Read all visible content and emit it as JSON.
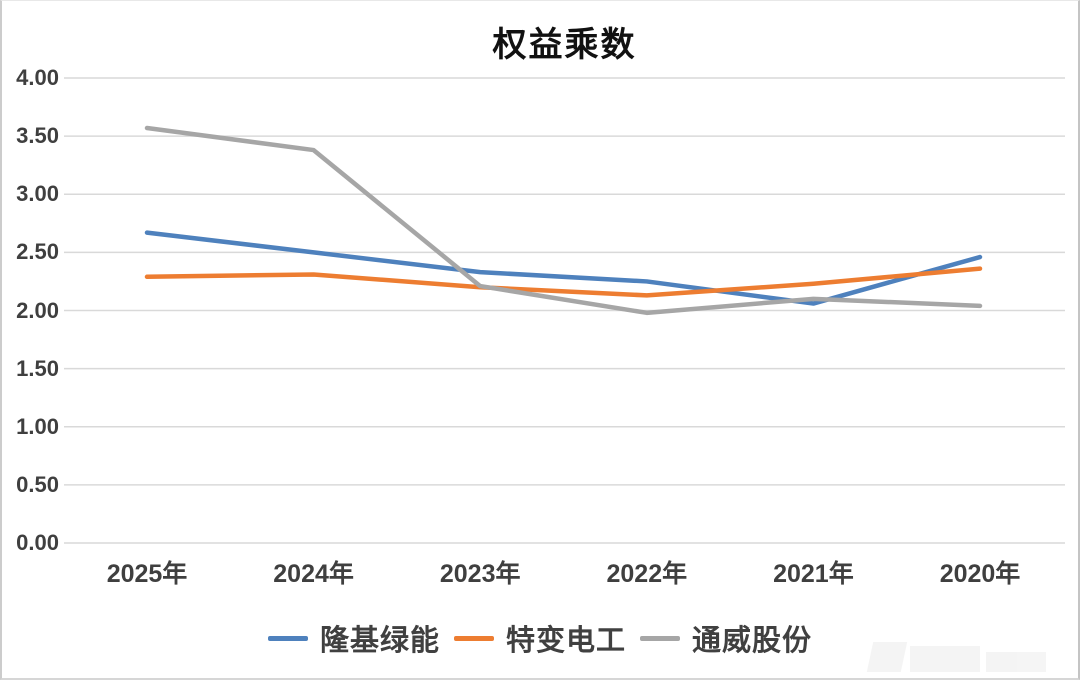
{
  "chart_data": {
    "type": "line",
    "title": "权益乘数",
    "categories": [
      "2025年",
      "2024年",
      "2023年",
      "2022年",
      "2021年",
      "2020年"
    ],
    "series": [
      {
        "name": "隆基绿能",
        "color": "#4E81BD",
        "values": [
          2.67,
          2.5,
          2.33,
          2.25,
          2.06,
          2.46
        ]
      },
      {
        "name": "特变电工",
        "color": "#ED7D31",
        "values": [
          2.29,
          2.31,
          2.2,
          2.13,
          2.23,
          2.36
        ]
      },
      {
        "name": "通威股份",
        "color": "#A6A6A6",
        "values": [
          3.57,
          3.38,
          2.21,
          1.98,
          2.1,
          2.04
        ]
      }
    ],
    "ylim": [
      0,
      4
    ],
    "ytick_step": 0.5,
    "y_ticks": [
      "0.00",
      "0.50",
      "1.00",
      "1.50",
      "2.00",
      "2.50",
      "3.00",
      "3.50",
      "4.00"
    ],
    "xlabel": "",
    "ylabel": "",
    "grid": "horizontal-only",
    "legend_position": "bottom-center"
  },
  "colors": {
    "gridline": "#D9D9D9",
    "axis_text": "#3F3F3F",
    "title_text": "#111111",
    "background": "#FFFFFF"
  }
}
